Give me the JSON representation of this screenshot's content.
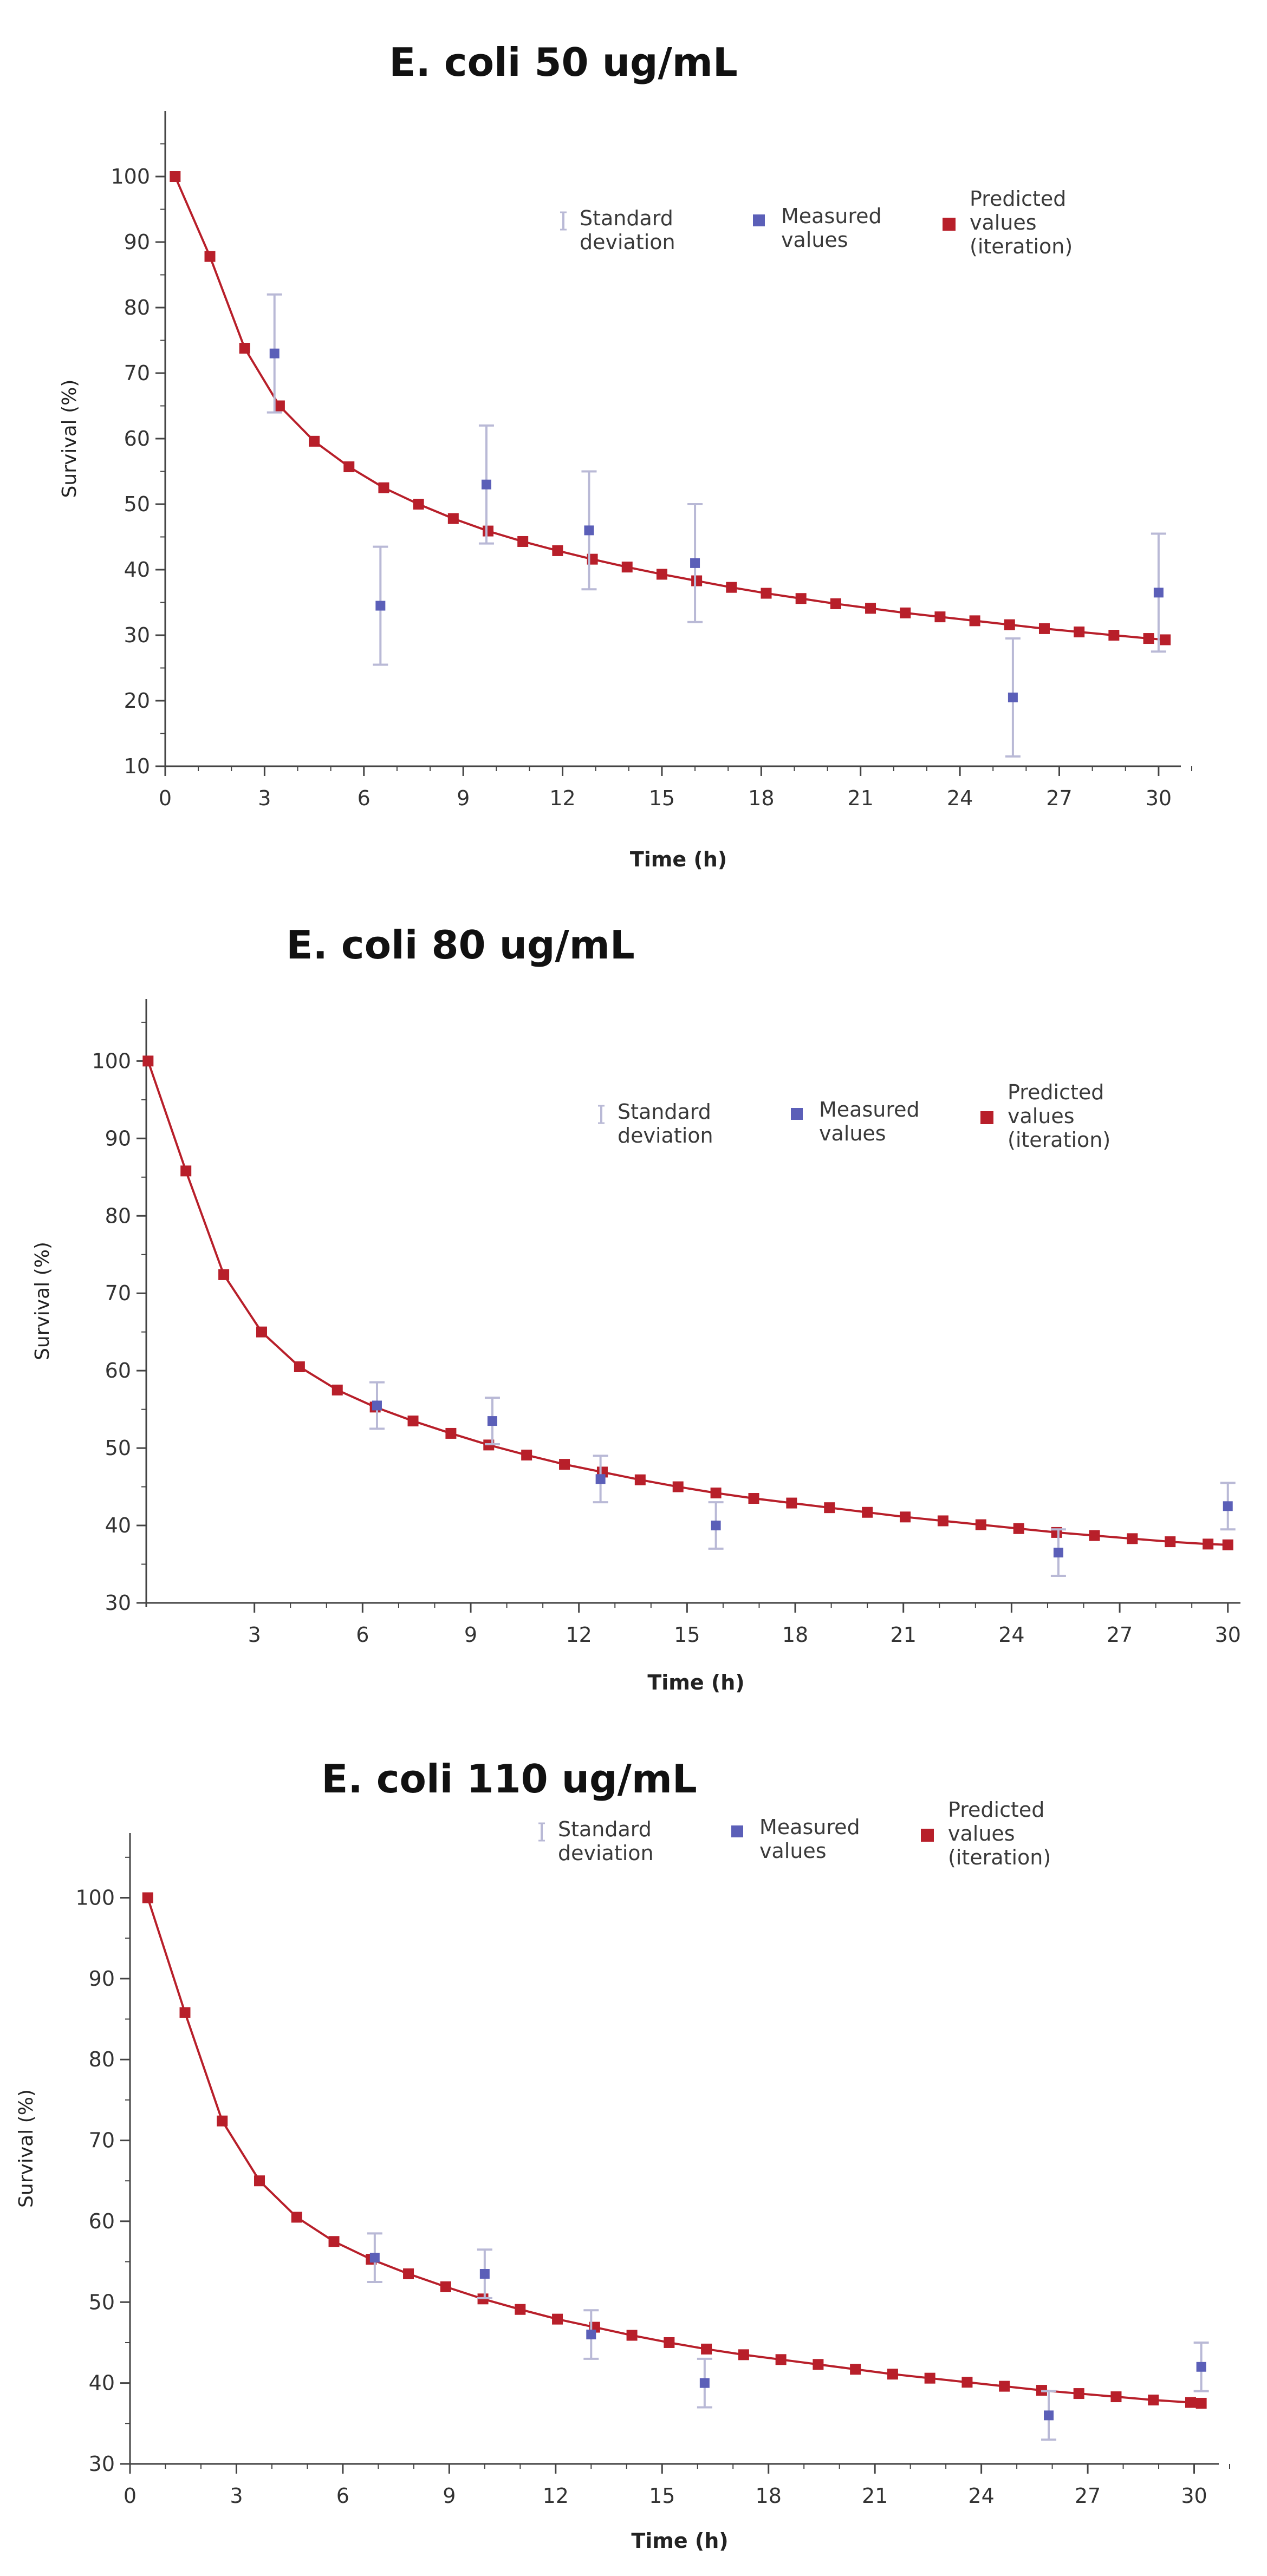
{
  "colors": {
    "predicted": "#b81f2a",
    "measured": "#5b5fb8",
    "error_bar": "#b9b9d6",
    "axis": "#444444"
  },
  "chart_data": [
    {
      "type": "line",
      "title": "E. coli 50 ug/mL",
      "xlabel": "Time (h)",
      "ylabel": "Survival (%)",
      "xlim": [
        0,
        31
      ],
      "ylim": [
        10,
        110
      ],
      "x_ticks": [
        0,
        3,
        6,
        9,
        12,
        15,
        18,
        21,
        24,
        27,
        30
      ],
      "x_tick_labels": [
        "0",
        "3",
        "6",
        "9",
        "12",
        "15",
        "18",
        "21",
        "24",
        "27",
        "30"
      ],
      "y_ticks": [
        10,
        20,
        30,
        40,
        50,
        60,
        70,
        80,
        90,
        100
      ],
      "y_tick_labels": [
        "10",
        "20",
        "30",
        "40",
        "50",
        "60",
        "70",
        "80",
        "90",
        "100"
      ],
      "legend": {
        "position": "top-right",
        "std_label": [
          "Standard",
          "deviation"
        ],
        "measured_label": [
          "Measured",
          "values"
        ],
        "predicted_label": [
          "Predicted",
          "values",
          "(iteration)"
        ]
      },
      "series": [
        {
          "name": "Predicted values (iteration)",
          "x": [
            0.3,
            1.35,
            2.4,
            3.45,
            4.5,
            5.55,
            6.6,
            7.65,
            8.7,
            9.75,
            10.8,
            11.85,
            12.9,
            13.95,
            15.0,
            16.05,
            17.1,
            18.15,
            19.2,
            20.25,
            21.3,
            22.35,
            23.4,
            24.45,
            25.5,
            26.55,
            27.6,
            28.65,
            29.7,
            30.2
          ],
          "y": [
            100,
            87.8,
            73.8,
            65,
            59.6,
            55.7,
            52.5,
            50,
            47.8,
            45.9,
            44.3,
            42.9,
            41.6,
            40.4,
            39.3,
            38.3,
            37.3,
            36.4,
            35.6,
            34.8,
            34.1,
            33.4,
            32.8,
            32.2,
            31.6,
            31.0,
            30.5,
            30.0,
            29.5,
            29.3
          ]
        },
        {
          "name": "Measured values",
          "x": [
            3.3,
            6.5,
            9.7,
            12.8,
            16.0,
            25.6,
            30.0
          ],
          "y": [
            73,
            34.5,
            53,
            46,
            41,
            20.5,
            36.5
          ],
          "std": [
            9,
            9,
            9,
            9,
            9,
            9,
            9
          ]
        }
      ]
    },
    {
      "type": "line",
      "title": "E. coli 80 ug/mL",
      "xlabel": "Time (h)",
      "ylabel": "Survival (%)",
      "xlim": [
        0,
        30.5
      ],
      "ylim": [
        30,
        108
      ],
      "x_ticks": [
        3,
        6,
        9,
        12,
        15,
        18,
        21,
        24,
        27,
        30
      ],
      "x_tick_labels": [
        "3",
        "6",
        "9",
        "12",
        "15",
        "18",
        "21",
        "24",
        "27",
        "30"
      ],
      "y_ticks": [
        30,
        40,
        50,
        60,
        70,
        80,
        90,
        100
      ],
      "y_tick_labels": [
        "30",
        "40",
        "50",
        "60",
        "70",
        "80",
        "90",
        "100"
      ],
      "legend": {
        "position": "top-right",
        "std_label": [
          "Standard",
          "deviation"
        ],
        "measured_label": [
          "Measured",
          "values"
        ],
        "predicted_label": [
          "Predicted",
          "values",
          "(iteration)"
        ]
      },
      "series": [
        {
          "name": "Predicted values (iteration)",
          "x": [
            0.05,
            1.1,
            2.15,
            3.2,
            4.25,
            5.3,
            6.35,
            7.4,
            8.45,
            9.5,
            10.55,
            11.6,
            12.65,
            13.7,
            14.75,
            15.8,
            16.85,
            17.9,
            18.95,
            20.0,
            21.05,
            22.1,
            23.15,
            24.2,
            25.25,
            26.3,
            27.35,
            28.4,
            29.45,
            30.0
          ],
          "y": [
            100,
            85.8,
            72.4,
            65,
            60.5,
            57.5,
            55.3,
            53.5,
            51.9,
            50.4,
            49.1,
            47.9,
            46.9,
            45.9,
            45.0,
            44.2,
            43.5,
            42.9,
            42.3,
            41.7,
            41.1,
            40.6,
            40.1,
            39.6,
            39.1,
            38.7,
            38.3,
            37.9,
            37.6,
            37.5
          ]
        },
        {
          "name": "Measured values",
          "x": [
            6.4,
            9.6,
            12.6,
            15.8,
            25.3,
            30.0
          ],
          "y": [
            55.5,
            53.5,
            46,
            40,
            36.5,
            42.5
          ],
          "std": [
            3,
            3,
            3,
            3,
            3,
            3
          ]
        }
      ]
    },
    {
      "type": "line",
      "title": "E. coli 110 ug/mL",
      "xlabel": "Time (h)",
      "ylabel": "Survival (%)",
      "xlim": [
        0,
        31
      ],
      "ylim": [
        30,
        108
      ],
      "x_ticks": [
        0,
        3,
        6,
        9,
        12,
        15,
        18,
        21,
        24,
        27,
        30
      ],
      "x_tick_labels": [
        "0",
        "3",
        "6",
        "9",
        "12",
        "15",
        "18",
        "21",
        "24",
        "27",
        "30"
      ],
      "y_ticks": [
        30,
        40,
        50,
        60,
        70,
        80,
        90,
        100
      ],
      "y_tick_labels": [
        "30",
        "40",
        "50",
        "60",
        "70",
        "80",
        "90",
        "100"
      ],
      "legend": {
        "position": "top-right",
        "std_label": [
          "Standard",
          "deviation"
        ],
        "measured_label": [
          "Measured",
          "values"
        ],
        "predicted_label": [
          "Predicted",
          "values",
          "(iteration)"
        ]
      },
      "series": [
        {
          "name": "Predicted values (iteration)",
          "x": [
            0.5,
            1.55,
            2.6,
            3.65,
            4.7,
            5.75,
            6.8,
            7.85,
            8.9,
            9.95,
            11.0,
            12.05,
            13.1,
            14.15,
            15.2,
            16.25,
            17.3,
            18.35,
            19.4,
            20.45,
            21.5,
            22.55,
            23.6,
            24.65,
            25.7,
            26.75,
            27.8,
            28.85,
            29.9,
            30.2
          ],
          "y": [
            100,
            85.8,
            72.4,
            65,
            60.5,
            57.5,
            55.3,
            53.5,
            51.9,
            50.4,
            49.1,
            47.9,
            46.9,
            45.9,
            45.0,
            44.2,
            43.5,
            42.9,
            42.3,
            41.7,
            41.1,
            40.6,
            40.1,
            39.6,
            39.1,
            38.7,
            38.3,
            37.9,
            37.6,
            37.5
          ]
        },
        {
          "name": "Measured values",
          "x": [
            6.9,
            10.0,
            13.0,
            16.2,
            25.9,
            30.2
          ],
          "y": [
            55.5,
            53.5,
            46,
            40,
            36,
            42
          ],
          "std": [
            3,
            3,
            3,
            3,
            3,
            3
          ]
        }
      ]
    }
  ]
}
